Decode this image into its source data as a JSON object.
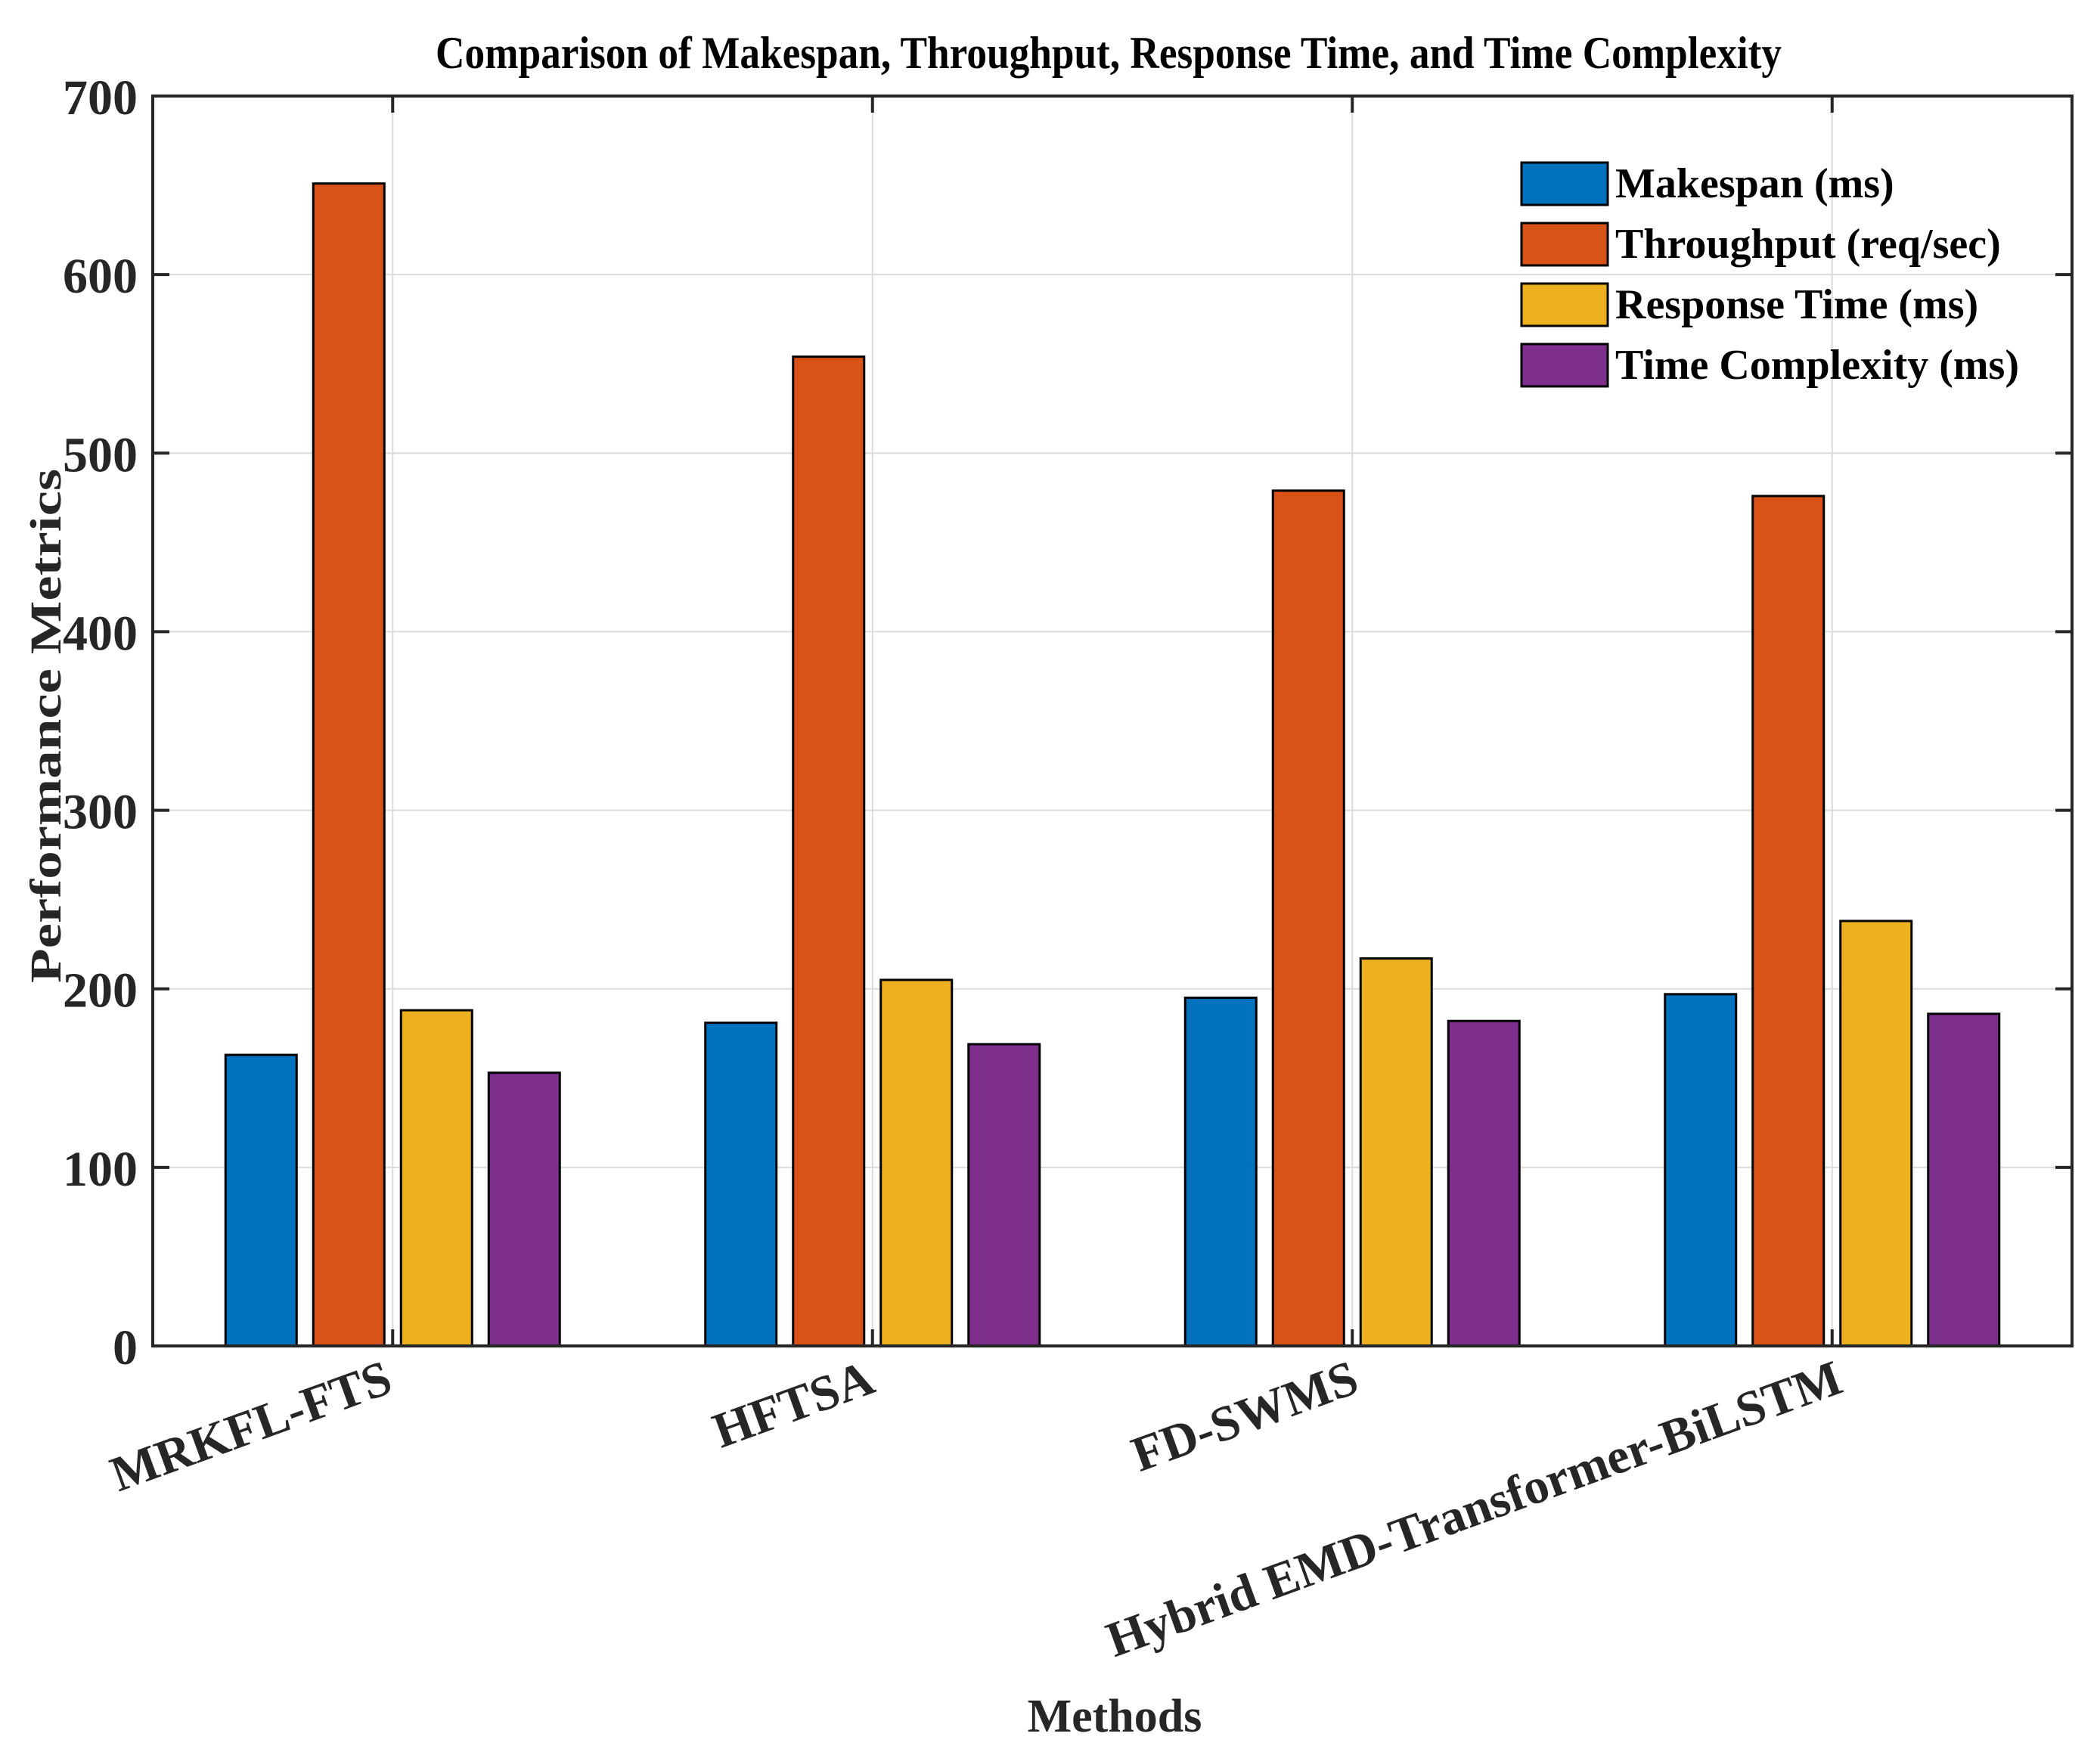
{
  "chart_data": {
    "type": "bar",
    "title": "Comparison of Makespan, Throughput, Response Time, and Time Complexity",
    "xlabel": "Methods",
    "ylabel": "Performance Metrics",
    "ylim": [
      0,
      700
    ],
    "yticks": [
      0,
      100,
      200,
      300,
      400,
      500,
      600,
      700
    ],
    "grid": true,
    "legend_position": "top-right",
    "categories": [
      "MRKFL-FTS",
      "HFTSA",
      "FD-SWMS",
      "Hybrid EMD-Transformer-BiLSTM"
    ],
    "series": [
      {
        "name": "Makespan (ms)",
        "color": "#0072BD",
        "values": [
          163,
          181,
          195,
          197
        ]
      },
      {
        "name": "Throughput (req/sec)",
        "color": "#D95319",
        "values": [
          651,
          554,
          479,
          476
        ]
      },
      {
        "name": "Response Time (ms)",
        "color": "#EDB120",
        "values": [
          188,
          205,
          217,
          238
        ]
      },
      {
        "name": "Time Complexity (ms)",
        "color": "#7E2F8E",
        "values": [
          153,
          169,
          182,
          186
        ]
      }
    ]
  }
}
